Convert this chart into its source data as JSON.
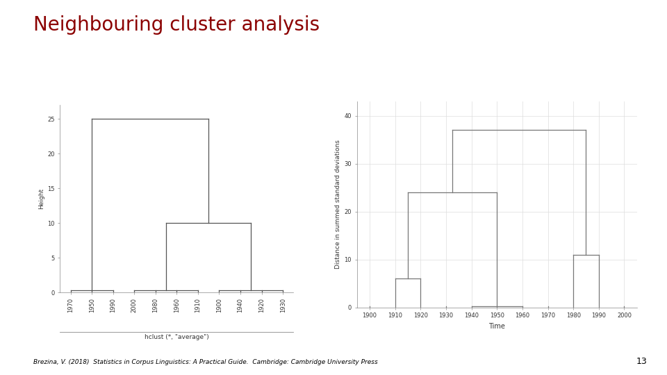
{
  "title": "Neighbouring cluster analysis",
  "title_color": "#8B0000",
  "title_fontsize": 20,
  "title_font": "sans-serif",
  "bg_color": "#ffffff",
  "footer_text": "Brezina, V. (2018)  Statistics in Corpus Linguistics: A Practical Guide.  Cambridge: Cambridge University Press",
  "page_number": "13",
  "dendrogram1": {
    "ylabel": "Height",
    "xlabel_caption": "hclust (*, \"average\")",
    "ylim": [
      0,
      27
    ],
    "yticks": [
      0,
      5,
      10,
      15,
      20,
      25
    ],
    "leaves": [
      "1970",
      "1950",
      "1990",
      "2000",
      "1980",
      "1960",
      "1910",
      "1900",
      "1940",
      "1920",
      "1930"
    ],
    "line_color": "#555555",
    "line_width": 0.9
  },
  "dendrogram2": {
    "ylabel": "Distance in summed standard deviations",
    "xlabel": "Time",
    "ylim": [
      0,
      43
    ],
    "yticks": [
      0,
      10,
      20,
      30,
      40
    ],
    "leaves": [
      "1900",
      "1910",
      "1920",
      "1930",
      "1940",
      "1950",
      "1960",
      "1970",
      "1980",
      "1990",
      "2000"
    ],
    "line_color": "#777777",
    "line_width": 0.9,
    "grid_color": "#dddddd"
  }
}
